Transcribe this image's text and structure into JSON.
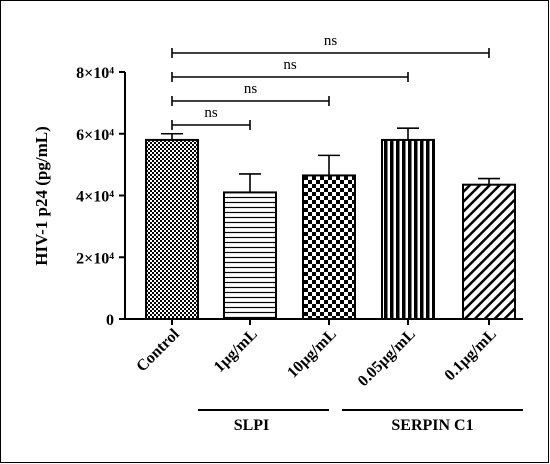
{
  "chart_data": {
    "type": "bar",
    "ylabel": "HIV-1 p24 (pg/mL)",
    "ylim": [
      0,
      80000
    ],
    "yticks": [
      {
        "value": 0,
        "label": "0"
      },
      {
        "value": 20000,
        "label": "2×10⁴"
      },
      {
        "value": 40000,
        "label": "4×10⁴"
      },
      {
        "value": 60000,
        "label": "6×10⁴"
      },
      {
        "value": 80000,
        "label": "8×10⁴"
      }
    ],
    "categories": [
      "Control",
      "1µg/mL",
      "10µg/mL",
      "0.05µg/mL",
      "0.1µg/mL"
    ],
    "values": [
      58000,
      41000,
      46500,
      58000,
      43500
    ],
    "errors": [
      2000,
      6000,
      6500,
      3800,
      2000
    ],
    "patterns": [
      "crosshatch",
      "horizontal",
      "checker",
      "vertical",
      "diagonal"
    ],
    "groups": [
      {
        "label": "SLPI",
        "categories": [
          1,
          2
        ]
      },
      {
        "label": "SERPIN C1",
        "categories": [
          3,
          4
        ]
      }
    ],
    "significance": [
      {
        "from": 0,
        "to": 1,
        "label": "ns"
      },
      {
        "from": 0,
        "to": 2,
        "label": "ns"
      },
      {
        "from": 0,
        "to": 3,
        "label": "ns"
      },
      {
        "from": 0,
        "to": 4,
        "label": "ns"
      }
    ],
    "grid": false
  }
}
